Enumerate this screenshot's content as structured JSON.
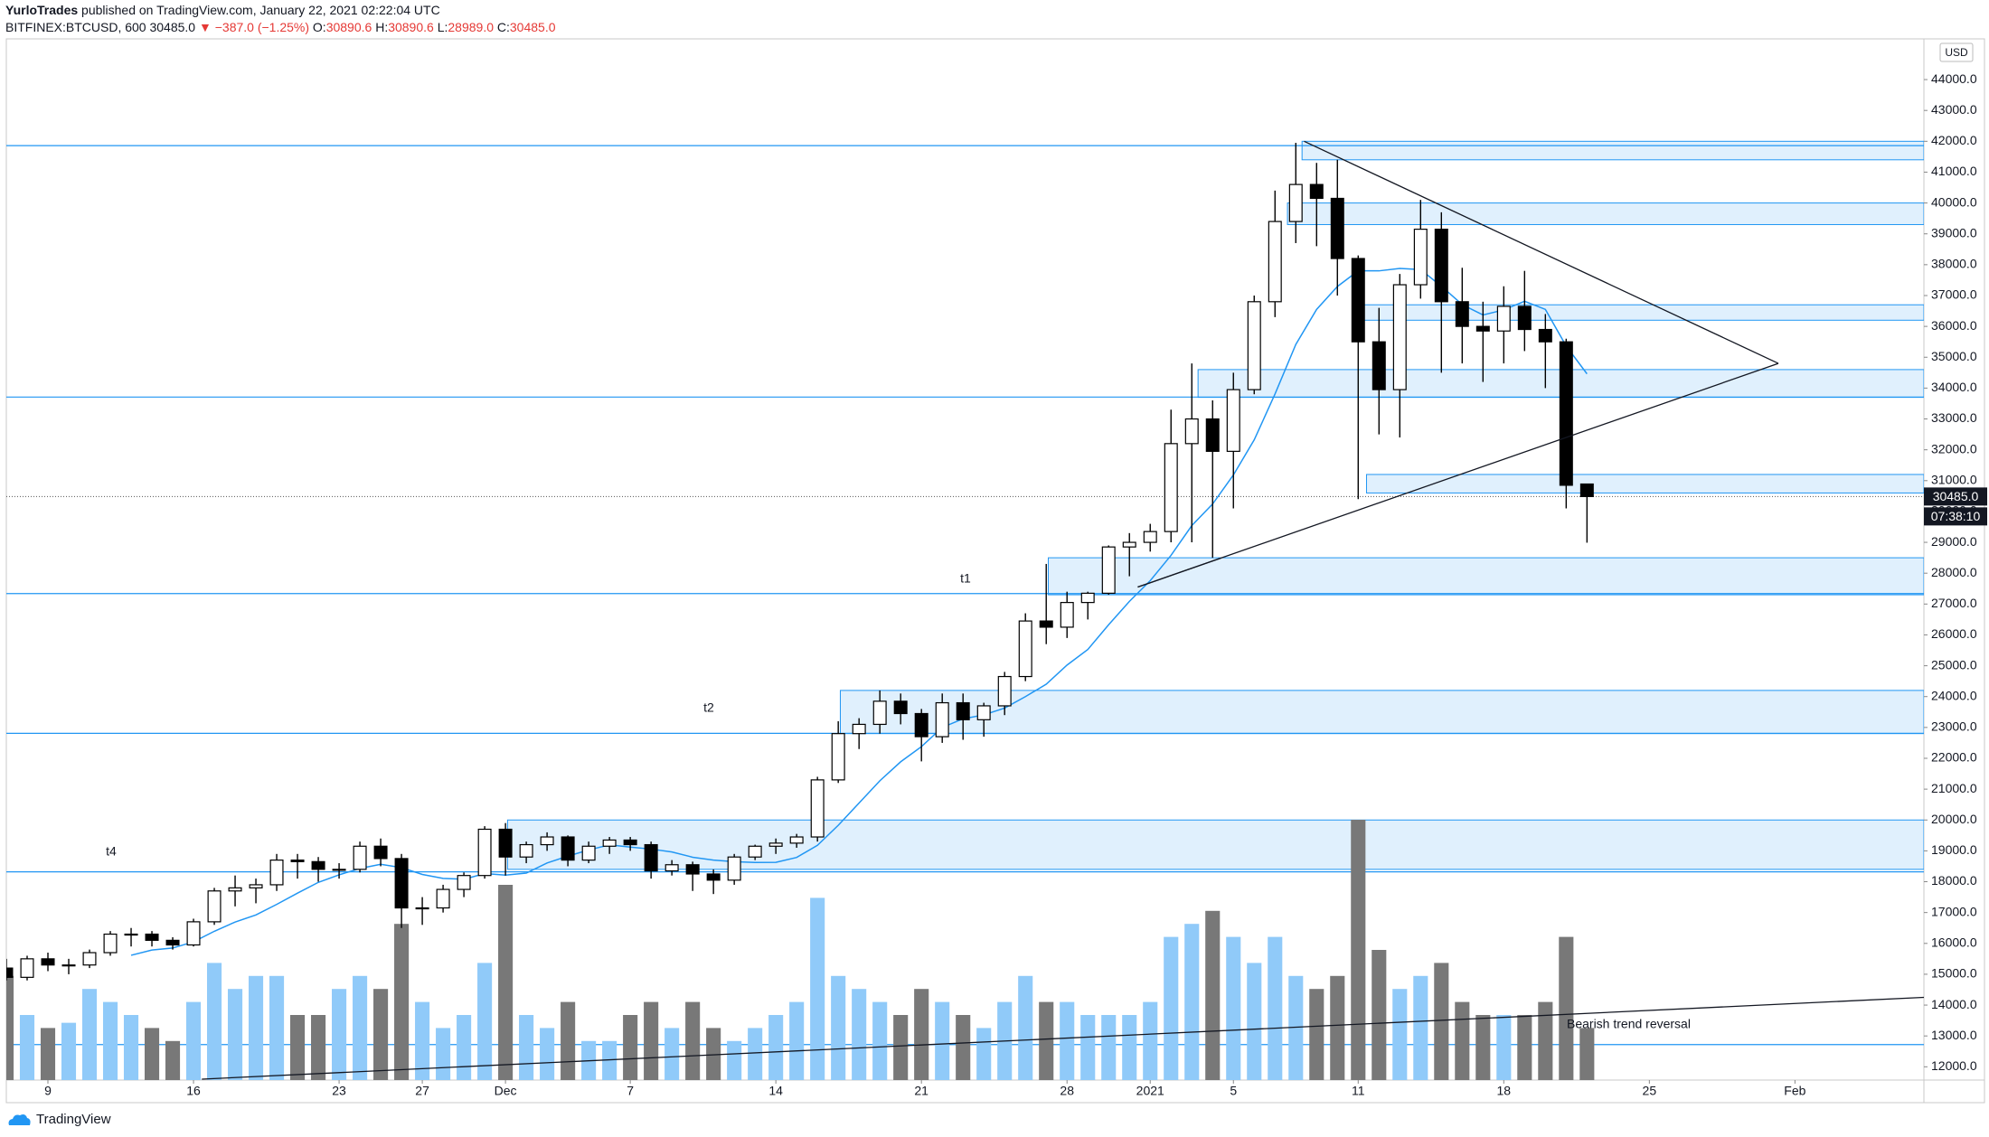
{
  "header": {
    "author": "YurloTrades",
    "published": "published on TradingView.com, January 22, 2021 02:22:04 UTC",
    "symbol": "BITFINEX:BTCUSD, 600",
    "last": "30485.0",
    "change": "▼ −387.0 (−1.25%)",
    "ohlc": [
      {
        "label": "O:",
        "value": "30890.6"
      },
      {
        "label": "H:",
        "value": "30890.6"
      },
      {
        "label": "L:",
        "value": "28989.0"
      },
      {
        "label": "C:",
        "value": "30485.0"
      }
    ]
  },
  "footer": {
    "brand": "TradingView"
  },
  "chart_data": {
    "type": "candlestick",
    "currency": "USD",
    "countdown": "07:38:10",
    "open": [
      15200,
      14900,
      15500,
      15300,
      15300,
      15700,
      16300,
      16300,
      16100,
      15950,
      16700,
      17700,
      17800,
      17900,
      18700,
      18650,
      18400,
      18400,
      19150,
      18750,
      17150,
      17150,
      17750,
      18200,
      19700,
      18800,
      19200,
      19450,
      18700,
      19150,
      19350,
      19200,
      18350,
      18550,
      18250,
      18050,
      18800,
      19150,
      19250,
      19450,
      21300,
      22800,
      23100,
      23850,
      23450,
      22700,
      23800,
      23250,
      23700,
      24650,
      26450,
      26250,
      27050,
      27350,
      28850,
      29000,
      29350,
      32200,
      33000,
      31950,
      33950,
      36800,
      39400,
      40600,
      40150,
      38200,
      35500,
      33950,
      37350,
      39150,
      36800,
      36000,
      35850,
      36650,
      35900,
      35500,
      30890.6
    ],
    "high": [
      15500,
      15600,
      15700,
      15500,
      15800,
      16400,
      16500,
      16400,
      16200,
      16800,
      17800,
      18200,
      18100,
      18900,
      18900,
      18800,
      18600,
      19300,
      19400,
      18900,
      17500,
      17900,
      18300,
      19800,
      19900,
      19300,
      19600,
      19500,
      19300,
      19450,
      19450,
      19300,
      18700,
      18650,
      18400,
      18900,
      19200,
      19400,
      19550,
      21400,
      23200,
      23300,
      24200,
      24100,
      23600,
      24100,
      24100,
      23800,
      24800,
      26700,
      28300,
      27400,
      27400,
      28900,
      29300,
      29600,
      33300,
      34800,
      33600,
      34500,
      37000,
      40400,
      41950,
      41300,
      41400,
      38300,
      36600,
      37700,
      40100,
      39700,
      37900,
      36800,
      37300,
      37800,
      36400,
      35600,
      30890.6
    ],
    "low": [
      14800,
      14800,
      15100,
      15000,
      15200,
      15600,
      15900,
      15900,
      15800,
      15900,
      16600,
      17200,
      17300,
      17700,
      18100,
      18000,
      18100,
      18300,
      18500,
      16500,
      16600,
      17000,
      17500,
      18100,
      18200,
      18600,
      19000,
      18500,
      18600,
      18900,
      19000,
      18100,
      18200,
      17700,
      17600,
      17900,
      18700,
      18900,
      19100,
      19300,
      21200,
      22300,
      22800,
      23100,
      21900,
      22500,
      22600,
      22700,
      23400,
      24500,
      25700,
      25900,
      26500,
      27300,
      27900,
      28700,
      29000,
      29000,
      28500,
      30100,
      33800,
      36300,
      38700,
      38600,
      37000,
      30400,
      32500,
      32400,
      36900,
      34500,
      34800,
      34200,
      34800,
      35200,
      34000,
      30100,
      28989.0
    ],
    "close": [
      14900,
      15500,
      15300,
      15300,
      15700,
      16300,
      16300,
      16100,
      15950,
      16700,
      17700,
      17800,
      17900,
      18700,
      18650,
      18400,
      18400,
      19150,
      18750,
      17150,
      17150,
      17750,
      18200,
      19700,
      18800,
      19200,
      19450,
      18700,
      19150,
      19350,
      19200,
      18350,
      18550,
      18250,
      18050,
      18800,
      19150,
      19250,
      19450,
      21300,
      22800,
      23100,
      23850,
      23450,
      22700,
      23800,
      23250,
      23700,
      24650,
      26450,
      26250,
      27050,
      27350,
      28850,
      29000,
      29350,
      32200,
      33000,
      31950,
      33950,
      36800,
      39400,
      40600,
      40150,
      38200,
      35500,
      33950,
      37350,
      39150,
      36800,
      36000,
      35850,
      36650,
      35900,
      35500,
      30850,
      30485
    ],
    "volume": [
      40,
      25,
      20,
      22,
      35,
      30,
      25,
      20,
      15,
      30,
      45,
      35,
      40,
      40,
      25,
      25,
      35,
      40,
      35,
      60,
      30,
      20,
      25,
      45,
      75,
      25,
      20,
      30,
      15,
      15,
      25,
      30,
      20,
      30,
      20,
      15,
      20,
      25,
      30,
      70,
      40,
      35,
      30,
      25,
      35,
      30,
      25,
      20,
      30,
      40,
      30,
      30,
      25,
      25,
      25,
      30,
      55,
      60,
      65,
      55,
      45,
      55,
      40,
      35,
      40,
      100,
      50,
      35,
      40,
      45,
      30,
      25,
      25,
      25,
      30,
      55,
      20
    ],
    "up_color": "#ffffff",
    "down_color": "#000000",
    "up_volume_color": "#90caf9",
    "down_volume_color": "#787878",
    "ma_color": "#2196f3",
    "zone_color": "#2196f3",
    "xlim": [
      0,
      92.2
    ],
    "xticks": [
      {
        "value": 2,
        "label": "9"
      },
      {
        "value": 9,
        "label": "16"
      },
      {
        "value": 16,
        "label": "23"
      },
      {
        "value": 20,
        "label": "27"
      },
      {
        "value": 24,
        "label": "Dec"
      },
      {
        "value": 30,
        "label": "7"
      },
      {
        "value": 37,
        "label": "14"
      },
      {
        "value": 44,
        "label": "21"
      },
      {
        "value": 51,
        "label": "28"
      },
      {
        "value": 55,
        "label": "2021"
      },
      {
        "value": 59,
        "label": "5"
      },
      {
        "value": 65,
        "label": "11"
      },
      {
        "value": 72,
        "label": "18"
      },
      {
        "value": 79,
        "label": "25"
      },
      {
        "value": 86,
        "label": "Feb"
      }
    ],
    "ylim": [
      11570,
      45320
    ],
    "yticks": [
      {
        "value": 12000,
        "label": "12000.0"
      },
      {
        "value": 13000,
        "label": "13000.0"
      },
      {
        "value": 14000,
        "label": "14000.0"
      },
      {
        "value": 15000,
        "label": "15000.0"
      },
      {
        "value": 16000,
        "label": "16000.0"
      },
      {
        "value": 17000,
        "label": "17000.0"
      },
      {
        "value": 18000,
        "label": "18000.0"
      },
      {
        "value": 19000,
        "label": "19000.0"
      },
      {
        "value": 20000,
        "label": "20000.0"
      },
      {
        "value": 21000,
        "label": "21000.0"
      },
      {
        "value": 22000,
        "label": "22000.0"
      },
      {
        "value": 23000,
        "label": "23000.0"
      },
      {
        "value": 24000,
        "label": "24000.0"
      },
      {
        "value": 25000,
        "label": "25000.0"
      },
      {
        "value": 26000,
        "label": "26000.0"
      },
      {
        "value": 27000,
        "label": "27000.0"
      },
      {
        "value": 28000,
        "label": "28000.0"
      },
      {
        "value": 29000,
        "label": "29000.0"
      },
      {
        "value": 30000,
        "label": "30000.0"
      },
      {
        "value": 31000,
        "label": "31000.0"
      },
      {
        "value": 32000,
        "label": "32000.0"
      },
      {
        "value": 33000,
        "label": "33000.0"
      },
      {
        "value": 34000,
        "label": "34000.0"
      },
      {
        "value": 35000,
        "label": "35000.0"
      },
      {
        "value": 36000,
        "label": "36000.0"
      },
      {
        "value": 37000,
        "label": "37000.0"
      },
      {
        "value": 38000,
        "label": "38000.0"
      },
      {
        "value": 39000,
        "label": "39000.0"
      },
      {
        "value": 40000,
        "label": "40000.0"
      },
      {
        "value": 41000,
        "label": "41000.0"
      },
      {
        "value": 42000,
        "label": "42000.0"
      },
      {
        "value": 43000,
        "label": "43000.0"
      },
      {
        "value": 44000,
        "label": "44000.0"
      }
    ],
    "grid": false,
    "zones": [
      {
        "low": 41400,
        "high": 42000,
        "start": 62.3
      },
      {
        "low": 39300,
        "high": 40000,
        "start": 61.6
      },
      {
        "low": 36200,
        "high": 36700,
        "start": 65.2
      },
      {
        "low": 33700,
        "high": 34600,
        "start": 57.3
      },
      {
        "low": 30600,
        "high": 31200,
        "start": 65.4
      },
      {
        "low": 27300,
        "high": 28500,
        "start": 50.1
      },
      {
        "low": 22800,
        "high": 24200,
        "start": 40.1
      },
      {
        "low": 18400,
        "high": 20000,
        "start": 24.1
      }
    ],
    "levels": [
      41860,
      33710,
      27340,
      22810,
      18320,
      12720
    ],
    "trendlines": [
      {
        "x1": 62.4,
        "y1": 42000,
        "x2": 85.2,
        "y2": 34800
      },
      {
        "x1": 54.4,
        "y1": 27550,
        "x2": 85.2,
        "y2": 34800
      },
      {
        "x1": 54.4,
        "y1": 27550,
        "x2": 58.4,
        "y2": 28490
      },
      {
        "x1": 9.4,
        "y1": 11600,
        "x2": 92.2,
        "y2": 14250
      }
    ],
    "annotations": [
      "t1",
      "t2",
      "t4",
      "Bearish trend reversal"
    ]
  }
}
